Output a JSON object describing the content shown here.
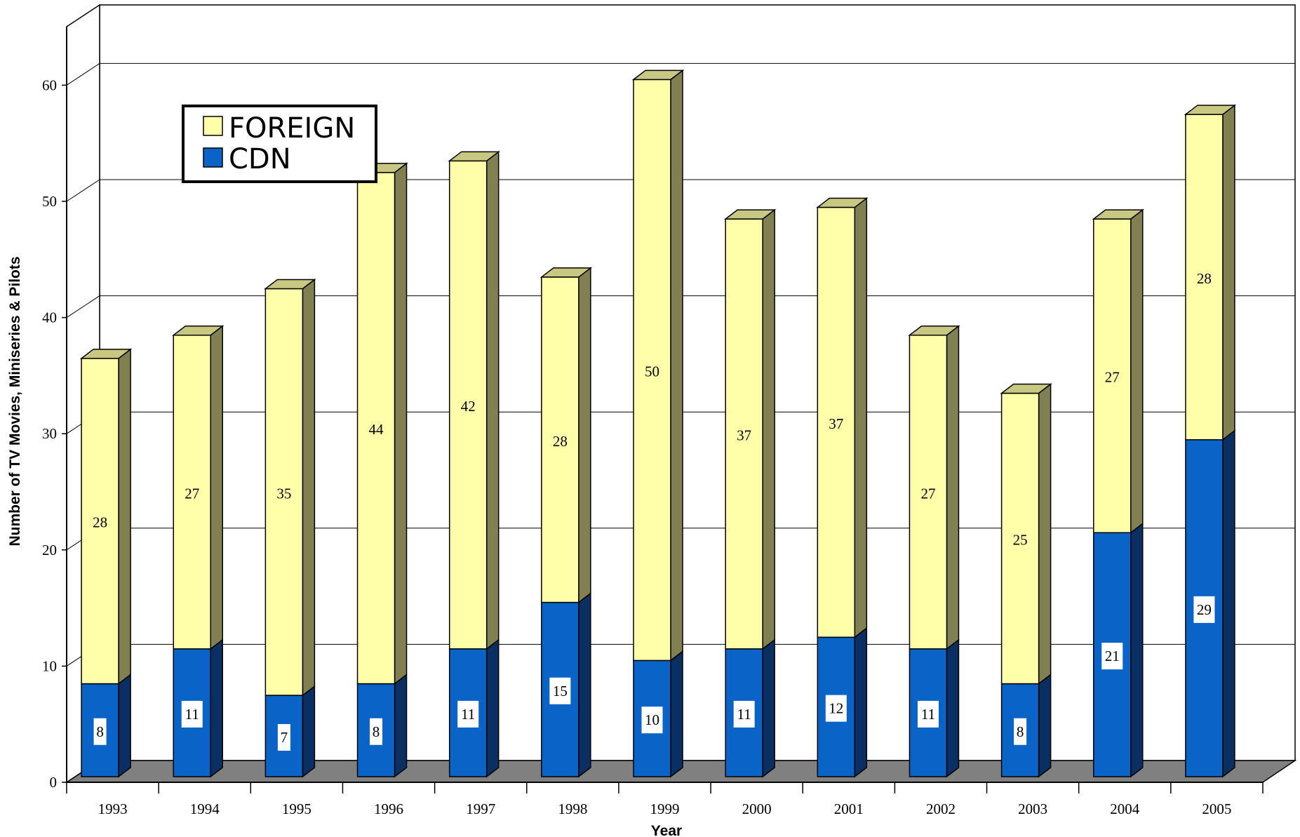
{
  "chart_data": {
    "type": "bar",
    "stacked": true,
    "categories": [
      "1993",
      "1994",
      "1995",
      "1996",
      "1997",
      "1998",
      "1999",
      "2000",
      "2001",
      "2002",
      "2003",
      "2004",
      "2005"
    ],
    "series": [
      {
        "name": "CDN",
        "values": [
          8,
          11,
          7,
          8,
          11,
          15,
          10,
          11,
          12,
          11,
          8,
          21,
          29
        ],
        "color": "#0a64c8"
      },
      {
        "name": "FOREIGN",
        "values": [
          28,
          27,
          35,
          44,
          42,
          28,
          50,
          37,
          37,
          27,
          25,
          27,
          28
        ],
        "color": "#ffffaa"
      }
    ],
    "xlabel": "Year",
    "ylabel": "Number of TV Movies, Miniseries & Pilots",
    "ylim": [
      0,
      60
    ],
    "yticks": [
      "0",
      "10",
      "20",
      "30",
      "40",
      "50",
      "60"
    ],
    "grid": true,
    "legend_position": "top-left",
    "legend": [
      "FOREIGN",
      "CDN"
    ]
  }
}
